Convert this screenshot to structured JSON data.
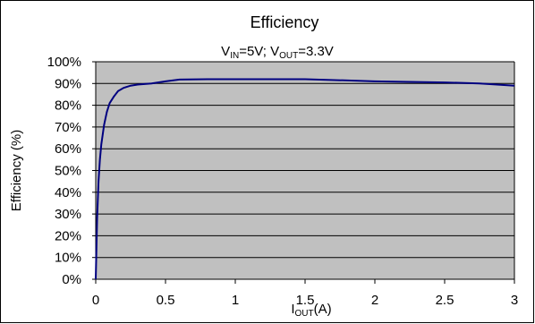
{
  "chart_data": {
    "type": "line",
    "title": "Efficiency",
    "subtitle": {
      "parts": [
        {
          "text": "V",
          "sub": false
        },
        {
          "text": "IN",
          "sub": true
        },
        {
          "text": "=5V; V",
          "sub": false
        },
        {
          "text": "OUT",
          "sub": true
        },
        {
          "text": "=3.3V",
          "sub": false
        }
      ]
    },
    "ylabel": "Efficiency (%)",
    "xlabel": {
      "parts": [
        {
          "text": "I",
          "sub": false
        },
        {
          "text": "OUT",
          "sub": true
        },
        {
          "text": "(A)",
          "sub": false
        }
      ]
    },
    "xlim": [
      0,
      3
    ],
    "ylim": [
      0,
      100
    ],
    "x_ticks": [
      0,
      0.5,
      1,
      1.5,
      2,
      2.5,
      3
    ],
    "x_tick_labels": [
      "0",
      "0.5",
      "1",
      "1.5",
      "2",
      "2.5",
      "3"
    ],
    "y_ticks": [
      0,
      10,
      20,
      30,
      40,
      50,
      60,
      70,
      80,
      90,
      100
    ],
    "y_tick_labels": [
      "0%",
      "10%",
      "20%",
      "30%",
      "40%",
      "50%",
      "60%",
      "70%",
      "80%",
      "90%",
      "100%"
    ],
    "grid": "horizontal",
    "colors": {
      "plot_background": "#c0c0c0",
      "series_line": "#000080",
      "grid": "#000000",
      "frame": "#000000"
    },
    "series": [
      {
        "x": [
          0.0,
          0.01,
          0.02,
          0.03,
          0.04,
          0.06,
          0.08,
          0.1,
          0.13,
          0.16,
          0.2,
          0.25,
          0.3,
          0.4,
          0.5,
          0.6,
          0.8,
          1.0,
          1.5,
          2.0,
          2.5,
          2.75,
          3.0
        ],
        "values": [
          0,
          28,
          45,
          55,
          62,
          71,
          77,
          81,
          84,
          86.5,
          88,
          89,
          89.5,
          90,
          91,
          91.8,
          92,
          92,
          92,
          91,
          90.5,
          90,
          89
        ]
      }
    ]
  }
}
